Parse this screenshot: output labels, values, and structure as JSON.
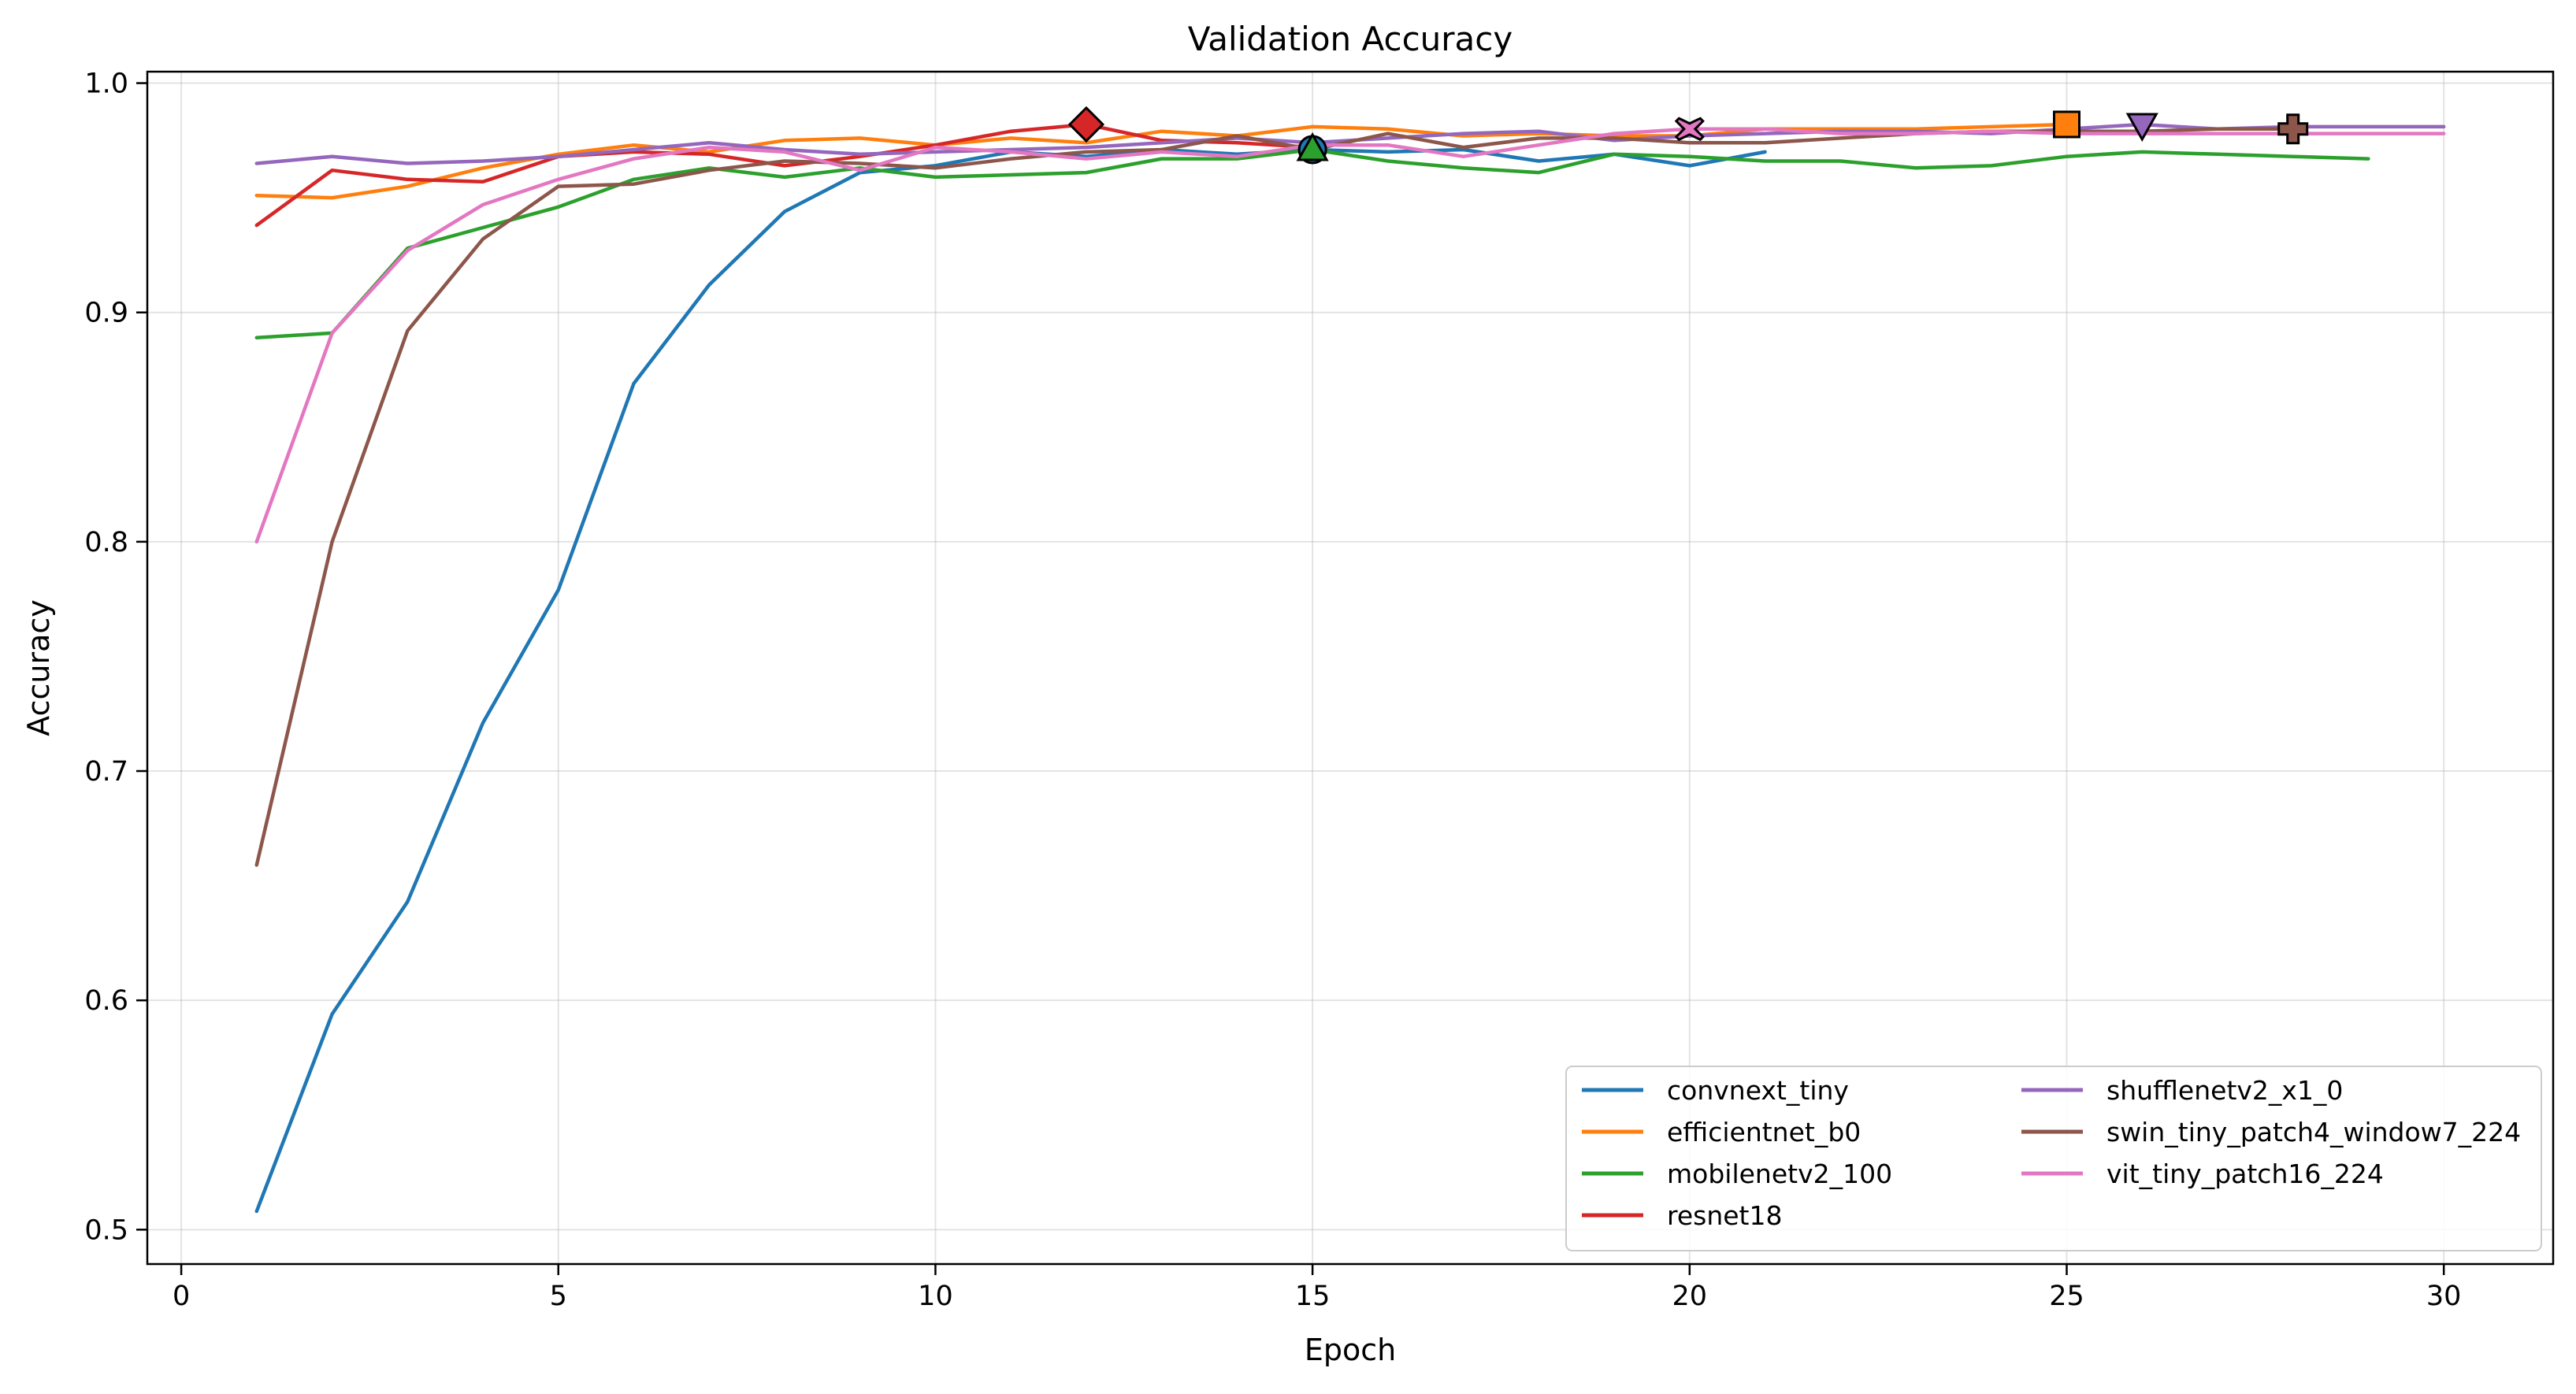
{
  "chart_data": {
    "type": "line",
    "title": "Validation Accuracy",
    "xlabel": "Epoch",
    "ylabel": "Accuracy",
    "xlim": [
      -0.45,
      31.45
    ],
    "ylim": [
      0.485,
      1.005
    ],
    "xticks": [
      0,
      5,
      10,
      15,
      20,
      25,
      30
    ],
    "yticks": [
      0.5,
      0.6,
      0.7,
      0.8,
      0.9,
      1.0
    ],
    "xtick_labels": [
      "0",
      "5",
      "10",
      "15",
      "20",
      "25",
      "30"
    ],
    "ytick_labels": [
      "0.5",
      "0.6",
      "0.7",
      "0.8",
      "0.9",
      "1.0"
    ],
    "grid": true,
    "legend_position": "lower-right",
    "legend_columns": 2,
    "series": [
      {
        "name": "convnext_tiny",
        "color": "#1f77b4",
        "marker": "circle",
        "best_epoch": 15,
        "best_value": 0.971,
        "x": [
          1,
          2,
          3,
          4,
          5,
          6,
          7,
          8,
          9,
          10,
          11,
          12,
          13,
          14,
          15,
          16,
          17,
          18,
          19,
          20,
          21
        ],
        "y": [
          0.508,
          0.594,
          0.643,
          0.721,
          0.779,
          0.869,
          0.912,
          0.944,
          0.961,
          0.964,
          0.97,
          0.968,
          0.971,
          0.969,
          0.971,
          0.97,
          0.971,
          0.966,
          0.969,
          0.964,
          0.97
        ]
      },
      {
        "name": "efficientnet_b0",
        "color": "#ff7f0e",
        "marker": "square",
        "best_epoch": 25,
        "best_value": 0.982,
        "x": [
          1,
          2,
          3,
          4,
          5,
          6,
          7,
          8,
          9,
          10,
          11,
          12,
          13,
          14,
          15,
          16,
          17,
          18,
          19,
          20,
          21,
          22,
          23,
          24,
          25
        ],
        "y": [
          0.951,
          0.95,
          0.955,
          0.963,
          0.969,
          0.973,
          0.97,
          0.975,
          0.976,
          0.973,
          0.976,
          0.974,
          0.979,
          0.977,
          0.981,
          0.98,
          0.977,
          0.978,
          0.977,
          0.977,
          0.98,
          0.98,
          0.98,
          0.981,
          0.982
        ]
      },
      {
        "name": "mobilenetv2_100",
        "color": "#2ca02c",
        "marker": "triangle-up",
        "best_epoch": 15,
        "best_value": 0.971,
        "x": [
          1,
          2,
          3,
          4,
          5,
          6,
          7,
          8,
          9,
          10,
          11,
          12,
          13,
          14,
          15,
          16,
          17,
          18,
          19,
          20,
          21,
          22,
          23,
          24,
          25,
          26,
          27,
          28,
          29
        ],
        "y": [
          0.889,
          0.891,
          0.928,
          0.937,
          0.946,
          0.958,
          0.963,
          0.959,
          0.963,
          0.959,
          0.96,
          0.961,
          0.967,
          0.967,
          0.971,
          0.966,
          0.963,
          0.961,
          0.969,
          0.968,
          0.966,
          0.966,
          0.963,
          0.964,
          0.968,
          0.97,
          0.969,
          0.968,
          0.967
        ]
      },
      {
        "name": "resnet18",
        "color": "#d62728",
        "marker": "diamond",
        "best_epoch": 12,
        "best_value": 0.982,
        "x": [
          1,
          2,
          3,
          4,
          5,
          6,
          7,
          8,
          9,
          10,
          11,
          12,
          13,
          14,
          15
        ],
        "y": [
          0.938,
          0.962,
          0.958,
          0.957,
          0.968,
          0.97,
          0.969,
          0.964,
          0.968,
          0.973,
          0.979,
          0.982,
          0.975,
          0.974,
          0.972
        ]
      },
      {
        "name": "shufflenetv2_x1_0",
        "color": "#9467bd",
        "marker": "triangle-down",
        "best_epoch": 26,
        "best_value": 0.982,
        "x": [
          1,
          2,
          3,
          4,
          5,
          6,
          7,
          8,
          9,
          10,
          11,
          12,
          13,
          14,
          15,
          16,
          17,
          18,
          19,
          20,
          21,
          22,
          23,
          24,
          25,
          26,
          27,
          28,
          29,
          30
        ],
        "y": [
          0.965,
          0.968,
          0.965,
          0.966,
          0.968,
          0.971,
          0.974,
          0.971,
          0.969,
          0.97,
          0.971,
          0.972,
          0.974,
          0.976,
          0.974,
          0.976,
          0.978,
          0.979,
          0.975,
          0.977,
          0.978,
          0.979,
          0.979,
          0.978,
          0.98,
          0.982,
          0.98,
          0.981,
          0.981,
          0.981
        ]
      },
      {
        "name": "swin_tiny_patch4_window7_224",
        "color": "#8c564b",
        "marker": "plus",
        "best_epoch": 28,
        "best_value": 0.98,
        "x": [
          1,
          2,
          3,
          4,
          5,
          6,
          7,
          8,
          9,
          10,
          11,
          12,
          13,
          14,
          15,
          16,
          17,
          18,
          19,
          20,
          21,
          22,
          23,
          24,
          25,
          26,
          27,
          28
        ],
        "y": [
          0.659,
          0.8,
          0.892,
          0.932,
          0.955,
          0.956,
          0.962,
          0.966,
          0.965,
          0.963,
          0.967,
          0.97,
          0.971,
          0.977,
          0.971,
          0.978,
          0.972,
          0.976,
          0.976,
          0.974,
          0.974,
          0.976,
          0.978,
          0.979,
          0.979,
          0.979,
          0.98,
          0.98
        ]
      },
      {
        "name": "vit_tiny_patch16_224",
        "color": "#e377c2",
        "marker": "x",
        "best_epoch": 20,
        "best_value": 0.98,
        "x": [
          1,
          2,
          3,
          4,
          5,
          6,
          7,
          8,
          9,
          10,
          11,
          12,
          13,
          14,
          15,
          16,
          17,
          18,
          19,
          20,
          21,
          22,
          23,
          24,
          25,
          26,
          27,
          28,
          29,
          30
        ],
        "y": [
          0.8,
          0.891,
          0.927,
          0.947,
          0.958,
          0.967,
          0.972,
          0.97,
          0.962,
          0.972,
          0.97,
          0.967,
          0.97,
          0.968,
          0.973,
          0.973,
          0.968,
          0.973,
          0.978,
          0.98,
          0.98,
          0.978,
          0.978,
          0.979,
          0.978,
          0.978,
          0.978,
          0.978,
          0.978,
          0.978
        ]
      }
    ]
  }
}
